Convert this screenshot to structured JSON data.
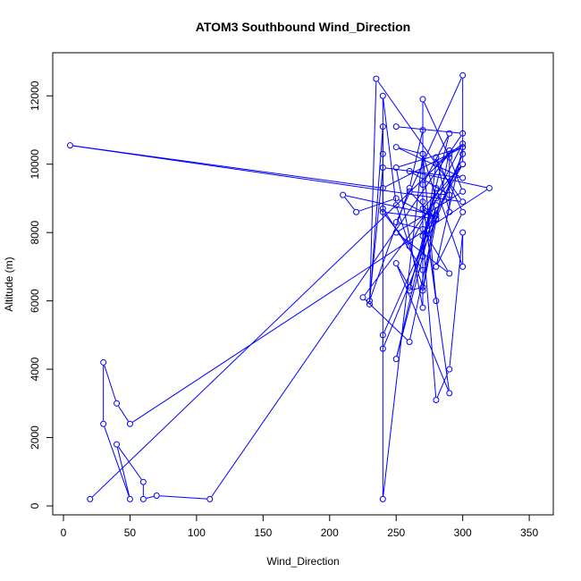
{
  "chart_data": {
    "type": "line",
    "title": "ATOM3 Southbound Wind_Direction",
    "xlabel": "Wind_Direction",
    "ylabel": "Altitude (m)",
    "xlim": [
      0,
      360
    ],
    "ylim": [
      0,
      13000
    ],
    "xticks": [
      0,
      50,
      100,
      150,
      200,
      250,
      300,
      350
    ],
    "yticks": [
      0,
      2000,
      4000,
      6000,
      8000,
      10000,
      12000
    ],
    "xtick_labels": [
      "0",
      "50",
      "100",
      "150",
      "200",
      "250",
      "300",
      "350"
    ],
    "ytick_labels": [
      "0",
      "2000",
      "4000",
      "6000",
      "8000",
      "10000",
      "12000"
    ],
    "grid": false,
    "color": "#0000ff",
    "points": [
      [
        20,
        200
      ],
      [
        290,
        10300
      ],
      [
        300,
        10500
      ],
      [
        240,
        9300
      ],
      [
        5,
        10550
      ],
      [
        300,
        8900
      ],
      [
        235,
        12500
      ],
      [
        230,
        5900
      ],
      [
        240,
        11100
      ],
      [
        240,
        4600
      ],
      [
        300,
        10300
      ],
      [
        240,
        5000
      ],
      [
        240,
        200
      ],
      [
        270,
        10300
      ],
      [
        280,
        9000
      ],
      [
        260,
        6400
      ],
      [
        250,
        7100
      ],
      [
        290,
        3300
      ],
      [
        270,
        8900
      ],
      [
        280,
        6000
      ],
      [
        270,
        10300
      ],
      [
        250,
        10500
      ],
      [
        300,
        9600
      ],
      [
        240,
        9900
      ],
      [
        230,
        6000
      ],
      [
        260,
        9300
      ],
      [
        270,
        11000
      ],
      [
        270,
        5800
      ],
      [
        250,
        9900
      ],
      [
        300,
        10500
      ],
      [
        280,
        7000
      ],
      [
        300,
        8600
      ],
      [
        280,
        10200
      ],
      [
        290,
        8600
      ],
      [
        290,
        10400
      ],
      [
        270,
        6300
      ],
      [
        280,
        8800
      ],
      [
        250,
        4300
      ],
      [
        280,
        9300
      ],
      [
        300,
        7000
      ],
      [
        300,
        8000
      ],
      [
        290,
        4000
      ],
      [
        280,
        3100
      ],
      [
        270,
        7900
      ],
      [
        300,
        10000
      ],
      [
        225,
        6100
      ],
      [
        260,
        4800
      ],
      [
        280,
        8500
      ],
      [
        210,
        9100
      ],
      [
        220,
        8600
      ],
      [
        250,
        9000
      ],
      [
        280,
        8400
      ],
      [
        240,
        8600
      ],
      [
        260,
        7600
      ],
      [
        300,
        10600
      ],
      [
        280,
        10000
      ],
      [
        270,
        7300
      ],
      [
        270,
        6900
      ],
      [
        240,
        8700
      ],
      [
        240,
        10300
      ],
      [
        240,
        12000
      ],
      [
        250,
        8800
      ],
      [
        270,
        6400
      ],
      [
        260,
        6300
      ],
      [
        290,
        10900
      ],
      [
        270,
        9400
      ],
      [
        270,
        11900
      ],
      [
        290,
        10200
      ],
      [
        300,
        9200
      ],
      [
        250,
        8000
      ],
      [
        290,
        6800
      ],
      [
        270,
        8100
      ],
      [
        250,
        8300
      ],
      [
        300,
        12600
      ],
      [
        300,
        10000
      ],
      [
        270,
        8700
      ],
      [
        280,
        8400
      ],
      [
        260,
        9200
      ],
      [
        290,
        9100
      ],
      [
        260,
        9800
      ],
      [
        320,
        9300
      ],
      [
        50,
        2400
      ],
      [
        40,
        3000
      ],
      [
        30,
        4200
      ],
      [
        30,
        2400
      ],
      [
        50,
        200
      ],
      [
        40,
        1800
      ],
      [
        60,
        700
      ],
      [
        60,
        200
      ],
      [
        70,
        300
      ],
      [
        110,
        200
      ],
      [
        300,
        10900
      ],
      [
        250,
        11100
      ]
    ]
  }
}
